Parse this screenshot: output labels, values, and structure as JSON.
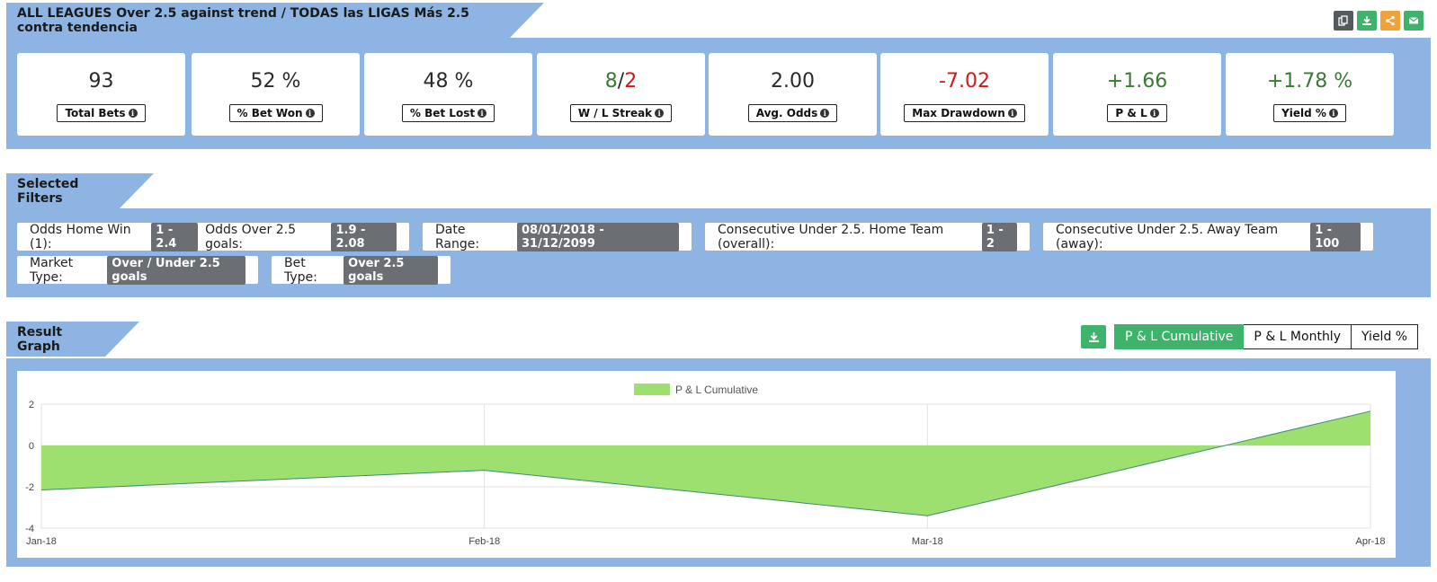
{
  "header": {
    "title": "ALL LEAGUES Over 2.5 against trend / TODAS las LIGAS Más 2.5 contra tendencia",
    "icons": [
      {
        "name": "copy-icon",
        "color": "#555a5f"
      },
      {
        "name": "download-icon",
        "color": "#3fb36b"
      },
      {
        "name": "share-icon",
        "color": "#f0a23a"
      },
      {
        "name": "email-icon",
        "color": "#3fb36b"
      }
    ]
  },
  "stats": [
    {
      "value": "93",
      "label": "Total Bets"
    },
    {
      "value": "52 %",
      "label": "% Bet Won"
    },
    {
      "value": "48 %",
      "label": "% Bet Lost"
    },
    {
      "win": "8",
      "sep": "/",
      "loss": "2",
      "label": "W / L Streak"
    },
    {
      "value": "2.00",
      "label": "Avg. Odds"
    },
    {
      "value": "-7.02",
      "label": "Max Drawdown"
    },
    {
      "value": "+1.66",
      "label": "P & L"
    },
    {
      "value": "+1.78 %",
      "label": "Yield %"
    }
  ],
  "filters": {
    "title": "Selected Filters",
    "items": [
      {
        "label": "Odds Home Win (1):",
        "value": "1 - 2.4",
        "label2": "Odds Over 2.5 goals:",
        "value2": "1.9 - 2.08"
      },
      {
        "label": "Date Range:",
        "value": "08/01/2018 - 31/12/2099"
      },
      {
        "label": "Consecutive Under 2.5. Home Team (overall):",
        "value": "1 - 2"
      },
      {
        "label": "Consecutive Under 2.5. Away Team (away):",
        "value": "1 - 100"
      },
      {
        "label": "Market Type:",
        "value": "Over / Under 2.5 goals"
      },
      {
        "label": "Bet Type:",
        "value": "Over 2.5 goals"
      }
    ]
  },
  "graph": {
    "title": "Result Graph",
    "buttons": [
      "P & L Cumulative",
      "P & L Monthly",
      "Yield %"
    ],
    "active": "P & L Cumulative"
  },
  "chart_data": {
    "type": "area",
    "x": [
      "Jan-18",
      "Feb-18",
      "Mar-18",
      "Apr-18"
    ],
    "series": [
      {
        "name": "P & L Cumulative",
        "values": [
          -2.15,
          -1.2,
          -3.4,
          1.66
        ],
        "fill": "#9de070",
        "stroke": "#3a8a7a"
      }
    ],
    "ylim": [
      -4,
      2
    ],
    "yticks": [
      2,
      0,
      -2,
      -4
    ],
    "grid": true,
    "legend": "top-center"
  }
}
